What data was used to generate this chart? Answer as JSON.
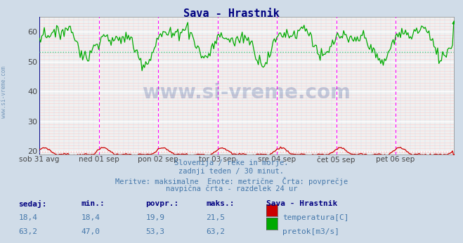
{
  "title": "Sava - Hrastnik",
  "title_color": "#000080",
  "bg_color": "#d0dce8",
  "plot_bg_color": "#f0f0f0",
  "grid_color_white": "#ffffff",
  "grid_color_pink": "#ffcccc",
  "grid_color_blue": "#ccddee",
  "xlabel_ticks": [
    "sob 31 avg",
    "ned 01 sep",
    "pon 02 sep",
    "tor 03 sep",
    "sre 04 sep",
    "čet 05 sep",
    "pet 06 sep"
  ],
  "ylim": [
    19.0,
    65.0
  ],
  "yticks": [
    20,
    30,
    40,
    50,
    60
  ],
  "n_points": 336,
  "temp_min": 18.4,
  "temp_max": 21.5,
  "temp_avg": 19.9,
  "temp_current": 18.4,
  "flow_min": 47.0,
  "flow_max": 63.2,
  "flow_avg": 53.3,
  "flow_current": 63.2,
  "temp_color": "#cc0000",
  "flow_color": "#00aa00",
  "avg_line_color_temp": "#ffaaaa",
  "avg_line_color_flow": "#44cc88",
  "vline_color_day": "#000088",
  "vline_color_mag": "#ff00ff",
  "watermark_color": "#1a3a8a",
  "watermark_alpha": 0.22,
  "footer_color": "#4477aa",
  "table_header_color": "#000080",
  "table_val_color": "#4477aa",
  "subtitle_lines": [
    "Slovenija / reke in morje.",
    "zadnji teden / 30 minut.",
    "Meritve: maksimalne  Enote: metrične  Črta: povprečje",
    "navpična črta - razdelek 24 ur"
  ],
  "left_label": "www.si-vreme.com",
  "left_label_color": "#7799bb"
}
